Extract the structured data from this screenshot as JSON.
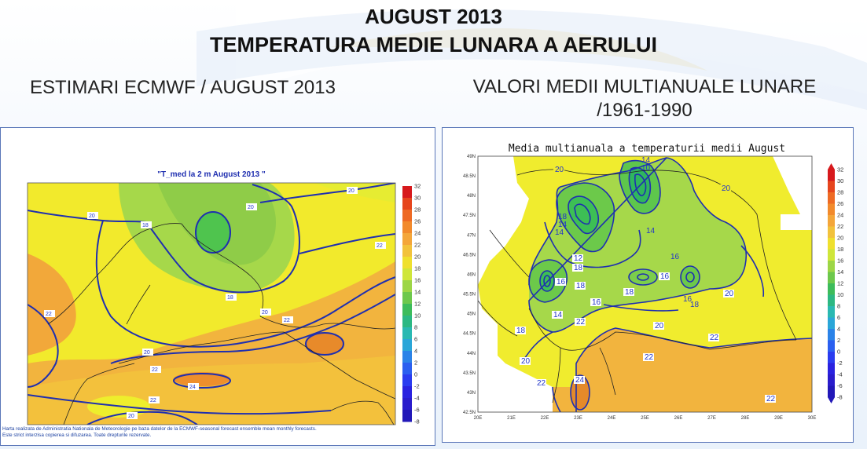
{
  "header": {
    "title_line1": "AUGUST 2013",
    "title_line2": "TEMPERATURA MEDIE LUNARA A AERULUI",
    "left_subtitle": "ESTIMARI ECMWF / AUGUST 2013",
    "right_subtitle_line1": "VALORI MEDII MULTIANUALE LUNARE",
    "right_subtitle_line2": "/1961-1990"
  },
  "left_map": {
    "title": "\"T_med la 2 m August 2013 \"",
    "colorbar_ticks": [
      "32",
      "30",
      "28",
      "26",
      "24",
      "22",
      "20",
      "18",
      "16",
      "14",
      "12",
      "10",
      "8",
      "6",
      "4",
      "2",
      "0",
      "-2",
      "-4",
      "-6",
      "-8"
    ],
    "contour_labels": {
      "c1": "20",
      "c2": "18",
      "c3": "20",
      "c4": "22",
      "c5": "20",
      "c6": "18",
      "c7": "20",
      "c8": "22",
      "c9": "22",
      "c10": "24",
      "c11": "22",
      "c12": "20",
      "c13": "22",
      "c14": "20"
    },
    "footer_line1": "Harta realizata de Administratia Nationala de Meteorologie pe baza datelor de la ECMWF-seasonal forecast ensemble mean monthly forecasts.",
    "footer_line2": "Este strict interzisa copierea si difuzarea. Toate drepturile rezervate."
  },
  "right_map": {
    "title": "Media multianuala a temperaturii medii August",
    "lat_ticks": [
      "49N",
      "48.5N",
      "48N",
      "47.5N",
      "47N",
      "46.5N",
      "46N",
      "45.5N",
      "45N",
      "44.5N",
      "44N",
      "43.5N",
      "43N",
      "42.5N"
    ],
    "lon_ticks": [
      "20E",
      "21E",
      "22E",
      "23E",
      "24E",
      "25E",
      "26E",
      "27E",
      "28E",
      "29E",
      "30E"
    ],
    "colorbar_ticks": [
      "32",
      "30",
      "28",
      "26",
      "24",
      "22",
      "20",
      "18",
      "16",
      "14",
      "12",
      "10",
      "8",
      "6",
      "4",
      "2",
      "0",
      "-2",
      "-4",
      "-6",
      "-8"
    ],
    "contour_labels": {
      "r1": "20",
      "r2": "14",
      "r3": "10",
      "r4": "20",
      "r5": "14",
      "r6": "18",
      "r7": "14",
      "r8": "12",
      "r9": "18",
      "r10": "16",
      "r11": "16",
      "r12": "18",
      "r13": "16",
      "r14": "18",
      "r15": "16",
      "r16": "18",
      "r17": "20",
      "r18": "14",
      "r19": "20",
      "r20": "18",
      "r21": "22",
      "r22": "20",
      "r23": "22",
      "r24": "22",
      "r25": "24",
      "r26": "22",
      "r27": "22",
      "r28": "14",
      "r29": "16"
    }
  },
  "colors": {
    "panel_border": "#5a76b8",
    "contour": "#1f2fb0",
    "label": "#2236c8"
  }
}
